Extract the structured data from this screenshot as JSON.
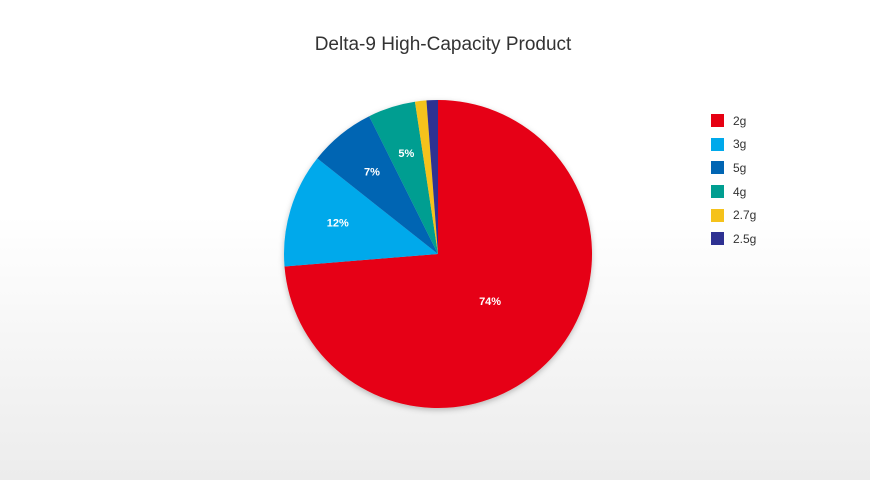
{
  "chart_data": {
    "type": "pie",
    "title": "Delta-9 High-Capacity Product",
    "legend_position": "right",
    "slices": [
      {
        "name": "2g",
        "value": 74,
        "label": "74%",
        "color": "#e60012"
      },
      {
        "name": "3g",
        "value": 12,
        "label": "12%",
        "color": "#00a9eb"
      },
      {
        "name": "5g",
        "value": 7,
        "label": "7%",
        "color": "#0065b3"
      },
      {
        "name": "4g",
        "value": 5,
        "label": "5%",
        "color": "#009e91"
      },
      {
        "name": "2.7g",
        "value": 1.2,
        "label": "",
        "color": "#f5c21b"
      },
      {
        "name": "2.5g",
        "value": 1.2,
        "label": "",
        "color": "#2e3192"
      }
    ]
  }
}
